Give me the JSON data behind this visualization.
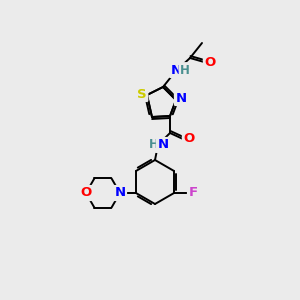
{
  "bg_color": "#ebebeb",
  "bond_color": "#000000",
  "atom_colors": {
    "O": "#ff0000",
    "N": "#0000ff",
    "S": "#cccc00",
    "F": "#cc44cc",
    "C": "#000000",
    "H": "#4a9090"
  },
  "font_size": 8.5,
  "lw": 1.4
}
